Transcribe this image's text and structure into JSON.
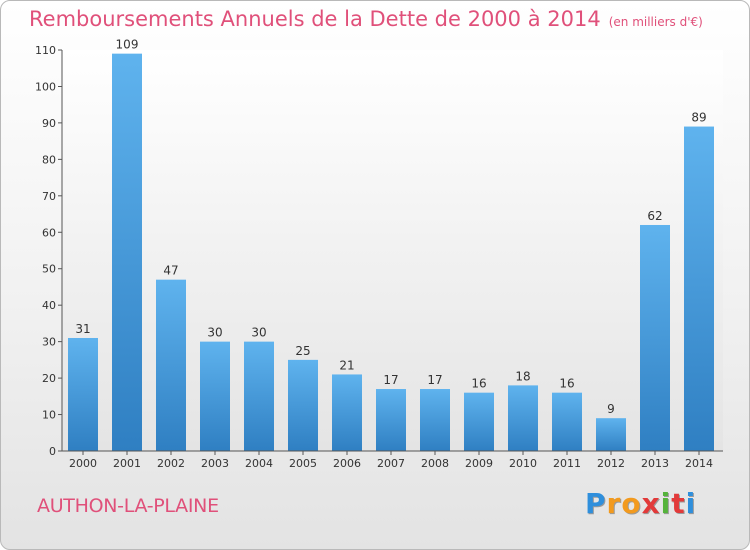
{
  "chart_data": {
    "type": "bar",
    "title": "Remboursements Annuels de la Dette de 2000 à 2014",
    "subtitle": "(en milliers d'€)",
    "xlabel": "",
    "ylabel": "",
    "categories": [
      "2000",
      "2001",
      "2002",
      "2003",
      "2004",
      "2005",
      "2006",
      "2007",
      "2008",
      "2009",
      "2010",
      "2011",
      "2012",
      "2013",
      "2014"
    ],
    "values": [
      31,
      109,
      47,
      30,
      30,
      25,
      21,
      17,
      17,
      16,
      18,
      16,
      9,
      62,
      89
    ],
    "ylim": [
      0,
      110
    ],
    "yticks": [
      0,
      10,
      20,
      30,
      40,
      50,
      60,
      70,
      80,
      90,
      100,
      110
    ],
    "grid": false,
    "legend": "none",
    "bar_color": "#4a9fe0",
    "label_color": "#e0507a"
  },
  "place": "AUTHON-LA-PLAINE",
  "logo": {
    "text": "Proxiti",
    "letters": [
      "P",
      "r",
      "o",
      "x",
      "i",
      "t",
      "i"
    ],
    "colors": [
      "#2f8fdc",
      "#f29a1e",
      "#f29a1e",
      "#e23a3a",
      "#55b33b",
      "#e23a3a",
      "#2f8fdc"
    ]
  }
}
